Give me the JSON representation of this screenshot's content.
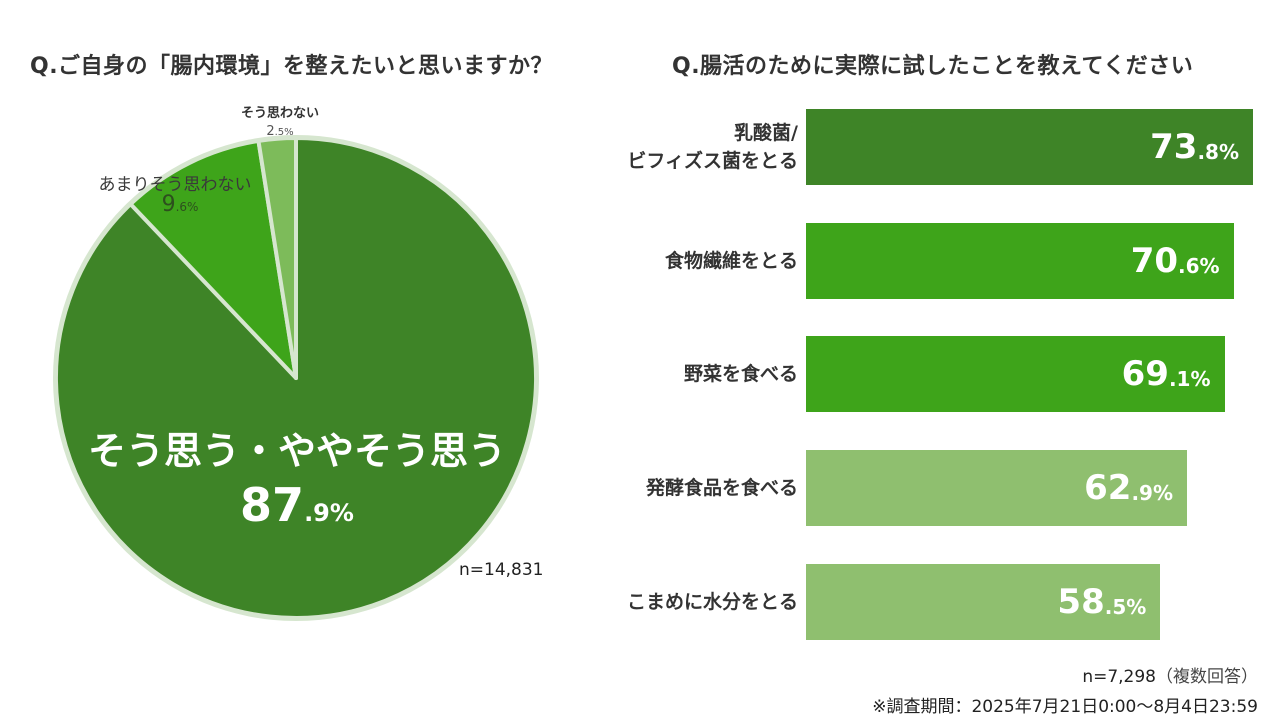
{
  "left_chart": {
    "title": "Q.ご自身の「腸内環境」を整えたいと思いますか？",
    "sample_size": "n=14,831",
    "slices": [
      {
        "label": "そう思う・ややそう思う",
        "value_int": "87",
        "value_dec": ".9%",
        "color": "#3e8427"
      },
      {
        "label": "あまりそう思わない",
        "value_int": "9",
        "value_dec": ".6%",
        "color": "#3ea41a"
      },
      {
        "label": "そう思わない",
        "value_int": "2",
        "value_dec": ".5%",
        "color": "#7dbb5a"
      }
    ],
    "border_color": "#d6e6cf"
  },
  "right_chart": {
    "title": "Q.腸活のために実際に試したことを教えてください",
    "sample_size": "n=7,298",
    "sample_note": "（複数回答）",
    "bars": [
      {
        "label_line1": "乳酸菌/",
        "label_line2": "ビフィズス菌をとる",
        "value_int": "73",
        "value_dec": ".8%",
        "color": "#3e8427"
      },
      {
        "label_line1": "食物繊維をとる",
        "label_line2": "",
        "value_int": "70",
        "value_dec": ".6%",
        "color": "#3ea41a"
      },
      {
        "label_line1": "野菜を食べる",
        "label_line2": "",
        "value_int": "69",
        "value_dec": ".1%",
        "color": "#3ea41a"
      },
      {
        "label_line1": "発酵食品を食べる",
        "label_line2": "",
        "value_int": "62",
        "value_dec": ".9%",
        "color": "#8fbf6f"
      },
      {
        "label_line1": "こまめに水分をとる",
        "label_line2": "",
        "value_int": "58",
        "value_dec": ".5%",
        "color": "#8fbf6f"
      }
    ]
  },
  "footer": {
    "survey_period": "※調査期間：2025年7月21日0:00～8月4日23:59"
  },
  "chart_data": [
    {
      "type": "pie",
      "title": "Q.ご自身の「腸内環境」を整えたいと思いますか？",
      "categories": [
        "そう思う・ややそう思う",
        "あまりそう思わない",
        "そう思わない"
      ],
      "values": [
        87.9,
        9.6,
        2.5
      ],
      "unit": "%",
      "annotation": "n=14,831",
      "legend": "none (direct labels)"
    },
    {
      "type": "bar",
      "orientation": "horizontal",
      "title": "Q.腸活のために実際に試したことを教えてください",
      "categories": [
        "乳酸菌/ビフィズス菌をとる",
        "食物繊維をとる",
        "野菜を食べる",
        "発酵食品を食べる",
        "こまめに水分をとる"
      ],
      "values": [
        73.8,
        70.6,
        69.1,
        62.9,
        58.5
      ],
      "unit": "%",
      "xlabel": "",
      "ylabel": "",
      "grid": false,
      "annotation": "n=7,298（複数回答）"
    }
  ]
}
